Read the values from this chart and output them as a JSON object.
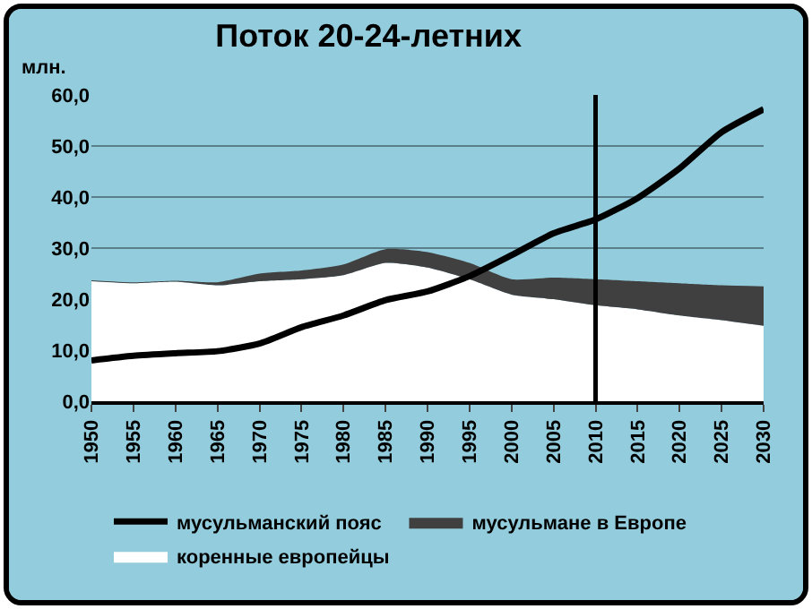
{
  "chart_data": {
    "type": "area",
    "title": "Поток 20-24-летних",
    "ylabel": "млн.",
    "stacked": true,
    "grid": "y",
    "legend": "bottom",
    "x": [
      1950,
      1955,
      1960,
      1965,
      1970,
      1975,
      1980,
      1985,
      1990,
      1995,
      2000,
      2005,
      2010,
      2015,
      2020,
      2025,
      2030
    ],
    "xlim": [
      1950,
      2030
    ],
    "xticks": [
      1950,
      1955,
      1960,
      1965,
      1970,
      1975,
      1980,
      1985,
      1990,
      1995,
      2000,
      2005,
      2010,
      2015,
      2020,
      2025,
      2030
    ],
    "ylim": [
      0,
      60
    ],
    "yticks": [
      {
        "value": 0,
        "label": "0,0"
      },
      {
        "value": 10,
        "label": "10,0"
      },
      {
        "value": 20,
        "label": "20,0"
      },
      {
        "value": 30,
        "label": "30,0"
      },
      {
        "value": 40,
        "label": "40,0"
      },
      {
        "value": 50,
        "label": "50,0"
      },
      {
        "value": 60,
        "label": "60,0"
      }
    ],
    "series": [
      {
        "name": "коренные европейцы",
        "color": "#ffffff",
        "values": [
          23.5,
          23.1,
          23.4,
          22.7,
          23.5,
          23.9,
          24.7,
          27.1,
          26.2,
          23.9,
          20.9,
          20.0,
          18.8,
          18.0,
          16.8,
          15.9,
          14.8
        ]
      },
      {
        "name": "мусульмане в Европе",
        "color": "#404040",
        "values": [
          0.2,
          0.2,
          0.2,
          0.6,
          1.5,
          1.7,
          2.1,
          2.7,
          3.0,
          3.2,
          3.0,
          4.2,
          5.1,
          5.5,
          6.3,
          6.8,
          7.7
        ]
      },
      {
        "name": "мусульманский пояс",
        "type": "line",
        "color": "#000000",
        "values": [
          8.0,
          8.9,
          9.4,
          9.8,
          11.3,
          14.5,
          16.8,
          19.8,
          21.5,
          24.5,
          28.6,
          32.9,
          35.6,
          39.8,
          45.6,
          52.7,
          57.2
        ]
      }
    ],
    "ref_lines": [
      {
        "axis": "x",
        "value": 2010,
        "color": "#000000"
      }
    ]
  }
}
